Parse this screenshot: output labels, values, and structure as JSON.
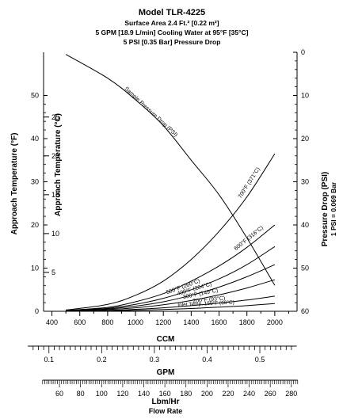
{
  "chart_data": {
    "type": "line",
    "title": "Model TLR-4225",
    "subtitle_lines": [
      "Surface Area 2.4 Ft.² [0.22 m²]",
      "5 GPM [18.9 L/min] Cooling Water at 95°F [35°C]",
      "5 PSI [0.35 Bar] Pressure Drop"
    ],
    "axes": {
      "y_left_f": {
        "label": "Approach Temperature (°F)",
        "ticks": [
          "0",
          "10",
          "20",
          "30",
          "40",
          "50"
        ],
        "ylim": [
          0,
          60
        ]
      },
      "y_left_c": {
        "label": "Approach Temperature (°C)",
        "ticks": [
          "5",
          "10",
          "15",
          "20",
          "25"
        ]
      },
      "y_right": {
        "label": "Pressure Drop (PSI)",
        "sublabel": "1 PSI = 0.069 Bar",
        "ticks": [
          "0",
          "10",
          "20",
          "30",
          "40",
          "50",
          "60"
        ],
        "ylim": [
          60,
          0
        ]
      },
      "x_ccm": {
        "label": "CCM",
        "ticks": [
          "400",
          "600",
          "800",
          "1000",
          "1200",
          "1400",
          "1600",
          "1800",
          "2000"
        ],
        "xlim": [
          340,
          2160
        ]
      },
      "x_gpm": {
        "label": "GPM",
        "ticks": [
          "0.1",
          "0.2",
          "0.3",
          "0.4",
          "0.5"
        ]
      },
      "x_lbm": {
        "label": "Lbm/Hr",
        "ticks": [
          "60",
          "80",
          "100",
          "120",
          "140",
          "160",
          "180",
          "200",
          "220",
          "240",
          "260",
          "280"
        ]
      },
      "x_bottom_label": "Flow Rate"
    },
    "series": [
      {
        "name": "Sample Pressure Drop (PSI)",
        "axis": "right",
        "x": [
          500,
          800,
          1000,
          1200,
          1400,
          1600,
          1800,
          2000
        ],
        "values": [
          0.5,
          6,
          11,
          17,
          25,
          33,
          43,
          54
        ]
      },
      {
        "name": "700°F (371°C)",
        "axis": "left",
        "x": [
          500,
          800,
          1000,
          1200,
          1400,
          1600,
          1800,
          2000
        ],
        "values": [
          0.3,
          1.6,
          3.7,
          7,
          12,
          18.5,
          26.5,
          36.5
        ]
      },
      {
        "name": "600°F (316°C)",
        "axis": "left",
        "x": [
          500,
          800,
          1000,
          1200,
          1400,
          1600,
          1800,
          2000
        ],
        "values": [
          0.2,
          0.9,
          2.2,
          4.1,
          7,
          10.5,
          14.8,
          20
        ]
      },
      {
        "name": "500°F (260°C)",
        "axis": "left",
        "x": [
          500,
          800,
          1000,
          1200,
          1400,
          1600,
          1800,
          2000
        ],
        "values": [
          0.15,
          0.7,
          1.6,
          3,
          5,
          7.5,
          10.8,
          15
        ]
      },
      {
        "name": "400°F (204°C)",
        "axis": "left",
        "x": [
          500,
          800,
          1000,
          1200,
          1400,
          1600,
          1800,
          2000
        ],
        "values": [
          0.12,
          0.55,
          1.2,
          2.2,
          3.7,
          5.6,
          8,
          10.8
        ]
      },
      {
        "name": "300°F (149°C)",
        "axis": "left",
        "x": [
          500,
          800,
          1000,
          1200,
          1400,
          1600,
          1800,
          2000
        ],
        "values": [
          0.1,
          0.4,
          0.8,
          1.5,
          2.5,
          3.8,
          5.4,
          7.3
        ]
      },
      {
        "name": "200°F (93°C)",
        "axis": "left",
        "x": [
          500,
          800,
          1000,
          1200,
          1400,
          1600,
          1800,
          2000
        ],
        "values": [
          0.05,
          0.2,
          0.45,
          0.8,
          1.3,
          1.9,
          2.6,
          3.5
        ]
      },
      {
        "name": "Inlet Temp. 150°F (66°C)",
        "axis": "left",
        "x": [
          500,
          800,
          1000,
          1200,
          1400,
          1600,
          1800,
          2000
        ],
        "values": [
          0.03,
          0.1,
          0.22,
          0.4,
          0.65,
          0.95,
          1.3,
          1.8
        ]
      }
    ]
  }
}
